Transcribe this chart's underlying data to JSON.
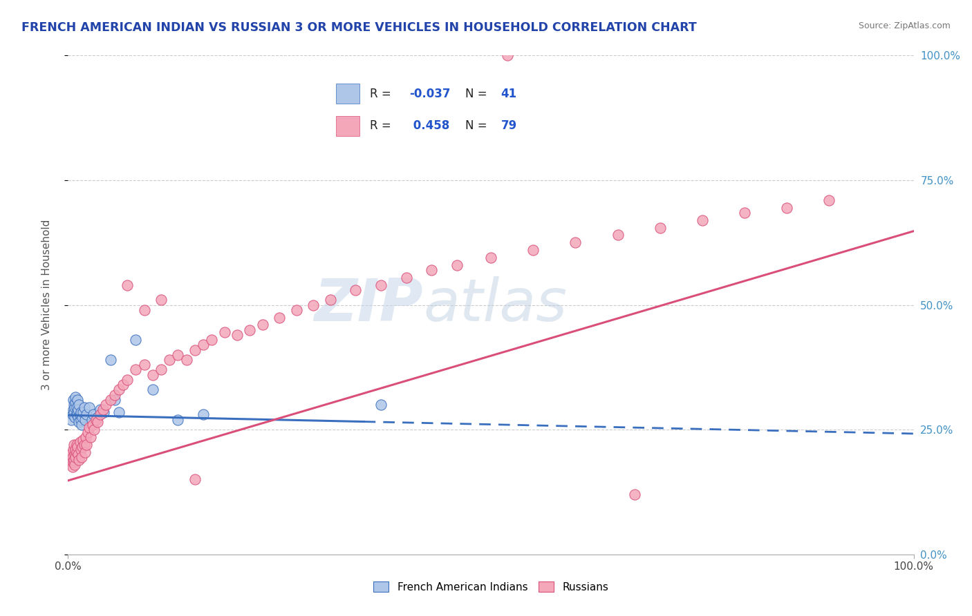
{
  "title": "FRENCH AMERICAN INDIAN VS RUSSIAN 3 OR MORE VEHICLES IN HOUSEHOLD CORRELATION CHART",
  "source": "Source: ZipAtlas.com",
  "ylabel": "3 or more Vehicles in Household",
  "xmin": 0.0,
  "xmax": 1.0,
  "ymin": 0.0,
  "ymax": 1.0,
  "ytick_labels": [
    "0.0%",
    "25.0%",
    "50.0%",
    "75.0%",
    "100.0%"
  ],
  "ytick_positions": [
    0.0,
    0.25,
    0.5,
    0.75,
    1.0
  ],
  "color_blue": "#aec6e8",
  "color_pink": "#f4a7b9",
  "color_blue_line": "#3a6fbf",
  "color_pink_line": "#d94f7a",
  "watermark_zip": "ZIP",
  "watermark_atlas": "atlas",
  "legend_label1": "French American Indians",
  "legend_label2": "Russians",
  "blue_x": [
    0.004,
    0.005,
    0.006,
    0.006,
    0.007,
    0.007,
    0.008,
    0.008,
    0.009,
    0.009,
    0.01,
    0.01,
    0.011,
    0.011,
    0.012,
    0.012,
    0.013,
    0.013,
    0.014,
    0.015,
    0.015,
    0.016,
    0.017,
    0.018,
    0.019,
    0.02,
    0.022,
    0.025,
    0.028,
    0.03,
    0.035,
    0.038,
    0.042,
    0.05,
    0.055,
    0.06,
    0.08,
    0.1,
    0.13,
    0.16,
    0.37
  ],
  "blue_y": [
    0.27,
    0.28,
    0.29,
    0.31,
    0.285,
    0.3,
    0.295,
    0.275,
    0.305,
    0.315,
    0.28,
    0.295,
    0.285,
    0.31,
    0.275,
    0.29,
    0.3,
    0.265,
    0.28,
    0.27,
    0.285,
    0.26,
    0.275,
    0.285,
    0.295,
    0.27,
    0.28,
    0.295,
    0.27,
    0.28,
    0.275,
    0.29,
    0.285,
    0.39,
    0.31,
    0.285,
    0.43,
    0.33,
    0.27,
    0.28,
    0.3
  ],
  "pink_x": [
    0.003,
    0.004,
    0.005,
    0.005,
    0.006,
    0.006,
    0.007,
    0.007,
    0.008,
    0.008,
    0.009,
    0.009,
    0.01,
    0.01,
    0.011,
    0.012,
    0.013,
    0.014,
    0.015,
    0.016,
    0.017,
    0.018,
    0.019,
    0.02,
    0.021,
    0.022,
    0.023,
    0.025,
    0.027,
    0.029,
    0.031,
    0.033,
    0.035,
    0.038,
    0.041,
    0.045,
    0.05,
    0.055,
    0.06,
    0.065,
    0.07,
    0.08,
    0.09,
    0.1,
    0.11,
    0.12,
    0.13,
    0.14,
    0.15,
    0.16,
    0.17,
    0.185,
    0.2,
    0.215,
    0.23,
    0.25,
    0.27,
    0.29,
    0.31,
    0.34,
    0.37,
    0.4,
    0.43,
    0.46,
    0.5,
    0.55,
    0.6,
    0.65,
    0.7,
    0.75,
    0.8,
    0.85,
    0.9,
    0.07,
    0.09,
    0.11,
    0.15,
    0.52,
    0.67
  ],
  "pink_y": [
    0.2,
    0.185,
    0.195,
    0.175,
    0.185,
    0.21,
    0.19,
    0.22,
    0.2,
    0.18,
    0.21,
    0.195,
    0.22,
    0.205,
    0.215,
    0.2,
    0.19,
    0.225,
    0.21,
    0.195,
    0.215,
    0.23,
    0.22,
    0.205,
    0.235,
    0.22,
    0.245,
    0.255,
    0.235,
    0.26,
    0.25,
    0.27,
    0.265,
    0.28,
    0.29,
    0.3,
    0.31,
    0.32,
    0.33,
    0.34,
    0.35,
    0.37,
    0.38,
    0.36,
    0.37,
    0.39,
    0.4,
    0.39,
    0.41,
    0.42,
    0.43,
    0.445,
    0.44,
    0.45,
    0.46,
    0.475,
    0.49,
    0.5,
    0.51,
    0.53,
    0.54,
    0.555,
    0.57,
    0.58,
    0.595,
    0.61,
    0.625,
    0.64,
    0.655,
    0.67,
    0.685,
    0.695,
    0.71,
    0.54,
    0.49,
    0.51,
    0.15,
    1.0,
    0.12
  ]
}
